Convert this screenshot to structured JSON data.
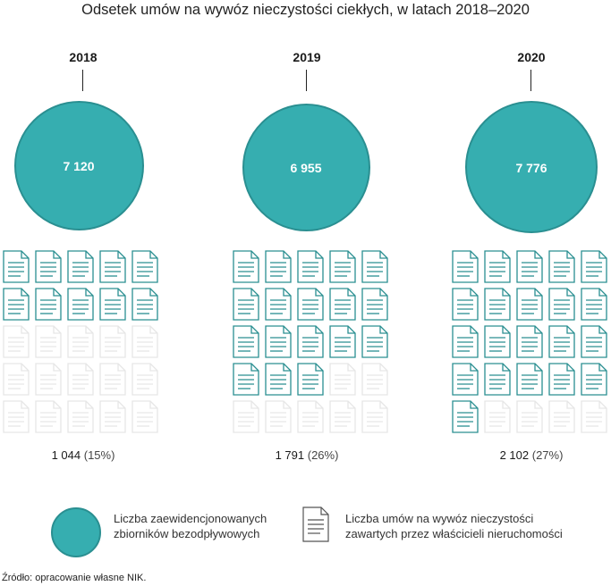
{
  "title": "Odsetek umów na wywóz nieczystości ciekłych, w latach 2018–2020",
  "chart_data": {
    "type": "pictogram",
    "title": "Odsetek umów na wywóz nieczystości ciekłych, w latach 2018–2020",
    "categories": [
      "2018",
      "2019",
      "2020"
    ],
    "series": [
      {
        "name": "Liczba zaewidencjonowanych zbiorników bezodpływowych",
        "values": [
          7120,
          6955,
          7776
        ],
        "labels": [
          "7 120",
          "6 955",
          "7 776"
        ]
      },
      {
        "name": "Liczba umów na wywóz nieczystości zawartych przez właścicieli nieruchomości",
        "values": [
          1044,
          1791,
          2102
        ],
        "labels": [
          "1 044",
          "1 791",
          "2 102"
        ],
        "percent": [
          15,
          26,
          27
        ],
        "percent_labels": [
          "(15%)",
          "(26%)",
          "(27%)"
        ]
      }
    ],
    "icons_filled": [
      10,
      18,
      21
    ],
    "colors": {
      "circle": "#36aeb0",
      "circle_border": "#2a8f91",
      "doc": "#2a8f91",
      "doc_faded": "#e6e6e6"
    }
  },
  "legend": {
    "circle": "Liczba zaewidencjonowanych zbiorników bezodpływowych",
    "circle_line1": "Liczba zaewidencjonowanych",
    "circle_line2": "zbiorników bezodpływowych",
    "doc_line1": "Liczba umów na wywóz nieczystości",
    "doc_line2": "zawartych przez właścicieli nieruchomości"
  },
  "source": "Źródło: opracowanie własne NIK."
}
